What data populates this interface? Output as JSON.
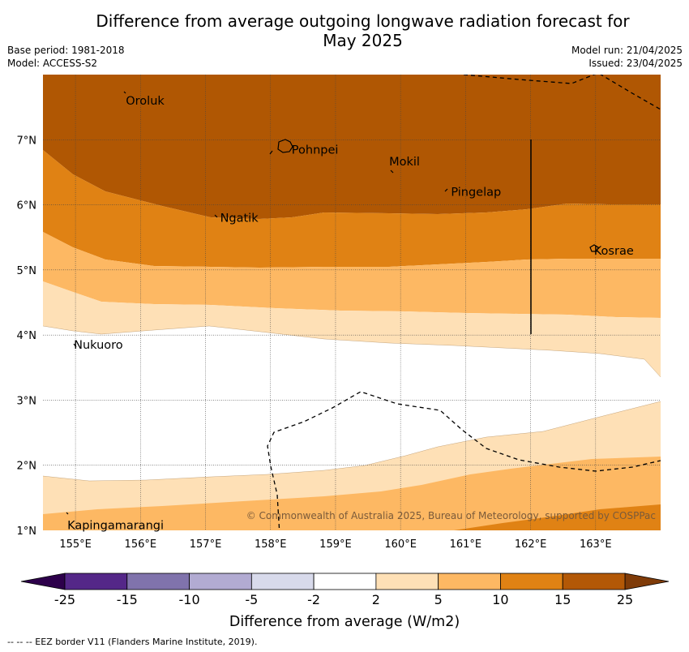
{
  "title_line1": "Difference from average outgoing longwave radiation forecast for",
  "title_line2": "May 2025",
  "base_period": "Base period: 1981-2018",
  "model": "Model: ACCESS-S2",
  "model_run": "Model run: 21/04/2025",
  "issued": "Issued: 23/04/2025",
  "map": {
    "lon_range": [
      154.5,
      164.0
    ],
    "lat_range": [
      1.0,
      8.0
    ],
    "lon_ticks": [
      "155°E",
      "156°E",
      "157°E",
      "158°E",
      "159°E",
      "160°E",
      "161°E",
      "162°E",
      "163°E"
    ],
    "lat_ticks": [
      "1°N",
      "2°N",
      "3°N",
      "4°N",
      "5°N",
      "6°N",
      "7°N"
    ],
    "places": [
      {
        "name": "Oroluk",
        "lon": 155.75,
        "lat": 7.6
      },
      {
        "name": "Pohnpei",
        "lon": 158.3,
        "lat": 6.85
      },
      {
        "name": "Mokil",
        "lon": 159.8,
        "lat": 6.67
      },
      {
        "name": "Pingelap",
        "lon": 160.75,
        "lat": 6.2
      },
      {
        "name": "Ngatik",
        "lon": 157.2,
        "lat": 5.8
      },
      {
        "name": "Kosrae",
        "lon": 162.95,
        "lat": 5.3
      },
      {
        "name": "Nukuoro",
        "lon": 154.95,
        "lat": 3.85
      },
      {
        "name": "Kapingamarangi",
        "lon": 154.85,
        "lat": 1.08
      }
    ],
    "credit": "© Commonwealth of Australia 2025, Bureau of Meteorology, supported by COSPPac",
    "colors": {
      "c25": "#b05703",
      "c15": "#e08214",
      "c10": "#fdb863",
      "c5": "#fee0b6",
      "c0": "#ffffff"
    }
  },
  "colorbar": {
    "ticks": [
      "-25",
      "-15",
      "-10",
      "-5",
      "-2",
      "2",
      "5",
      "10",
      "15",
      "25"
    ],
    "colors": [
      "#542788",
      "#8073ac",
      "#b2abd2",
      "#d8daeb",
      "#ffffff",
      "#fee0b6",
      "#fdb863",
      "#e08214",
      "#b35806"
    ],
    "low_extend": "#2d004b",
    "high_extend": "#7f3b08",
    "label": "Difference from average (W/m2)"
  },
  "footer": "--  --  -- EEZ border V11 (Flanders Marine Institute, 2019)."
}
